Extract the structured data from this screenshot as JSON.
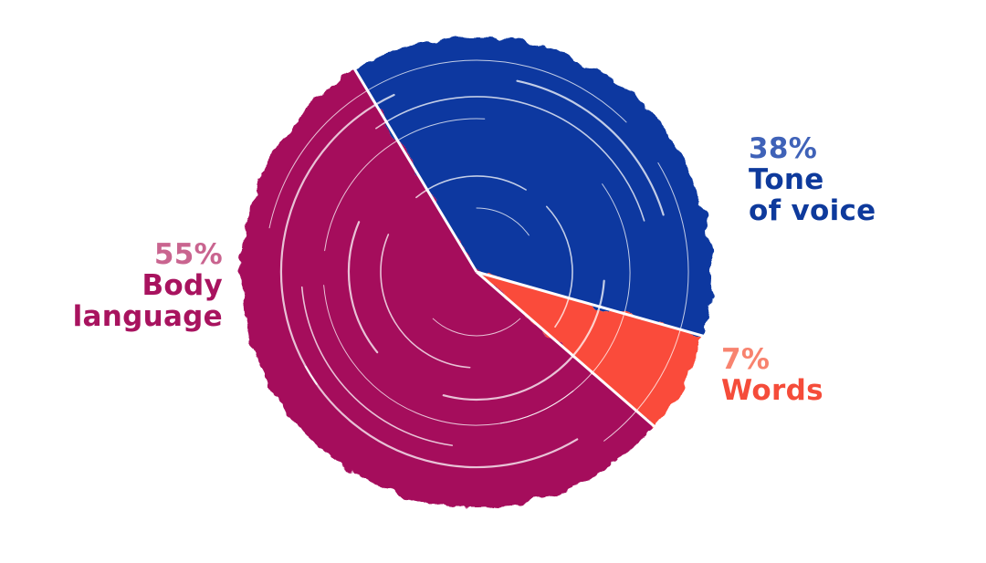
{
  "chart_data": {
    "type": "pie",
    "slices": [
      {
        "label": "Tone of voice",
        "percent_label": "38%",
        "value": 38,
        "color": "#0a38a0"
      },
      {
        "label": "Words",
        "percent_label": "7%",
        "value": 7,
        "color": "#fa4b3a"
      },
      {
        "label": "Body language",
        "percent_label": "55%",
        "value": 55,
        "color": "#a50b5c"
      }
    ],
    "title": "",
    "legend": "none"
  }
}
